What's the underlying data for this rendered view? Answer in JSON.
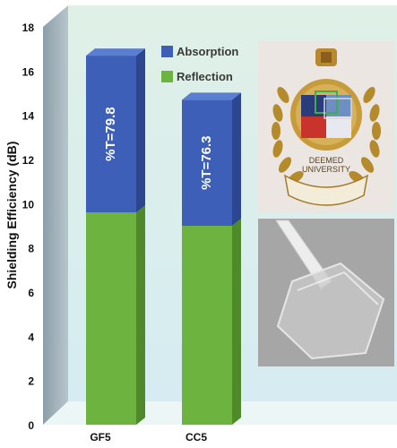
{
  "chart_data": {
    "type": "bar",
    "stacked": true,
    "three_d": true,
    "categories": [
      "GF5",
      "CC5"
    ],
    "series": [
      {
        "name": "Reflection",
        "values": [
          9.6,
          9.0
        ]
      },
      {
        "name": "Absorption",
        "values": [
          7.1,
          5.7
        ]
      }
    ],
    "bar_labels": [
      "%T=79.8",
      "%T=76.3"
    ],
    "title": "",
    "xlabel": "",
    "ylabel": "Shielding Efficiency (dB)",
    "ylim": [
      0,
      18
    ],
    "yticks": [
      "0",
      "2",
      "4",
      "6",
      "8",
      "10",
      "12",
      "14",
      "16",
      "18"
    ],
    "legend": "top-center",
    "grid": false
  },
  "colors": {
    "reflection": "#6db33f",
    "reflection_side": "#4f8a2a",
    "reflection_top": "#8fcf5c",
    "absorption": "#3d5fb8",
    "absorption_side": "#2c4690",
    "absorption_top": "#5b7fd0",
    "wall": "#9fb0b8",
    "back_panel": "#e2f1ea",
    "floor": "#eef7f8"
  },
  "insets": {
    "logo": {
      "text_line1": "DEEMED",
      "text_line2": "UNIVERSITY"
    }
  }
}
